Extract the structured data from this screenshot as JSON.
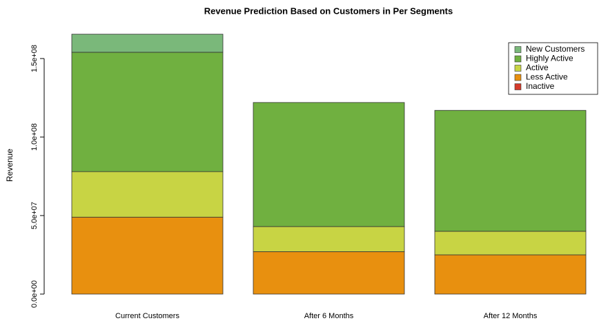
{
  "chart_data": {
    "type": "bar",
    "stacked": true,
    "title": "Revenue Prediction Based on Customers in Per Segments",
    "y_label": "Revenue",
    "categories": [
      "Current Customers",
      "After 6 Months",
      "After 12 Months"
    ],
    "series": [
      {
        "name": "Inactive",
        "color": "#d43a2a",
        "values": [
          0,
          0,
          0
        ]
      },
      {
        "name": "Less Active",
        "color": "#e8900f",
        "values": [
          49000000,
          27000000,
          25000000
        ]
      },
      {
        "name": "Active",
        "color": "#c8d444",
        "values": [
          29000000,
          16000000,
          15000000
        ]
      },
      {
        "name": "Highly Active",
        "color": "#70b040",
        "values": [
          76000000,
          79000000,
          77000000
        ]
      },
      {
        "name": "New Customers",
        "color": "#7ab87a",
        "values": [
          11500000,
          0,
          0
        ]
      }
    ],
    "ylim": [
      0,
      170000000
    ],
    "yticks": [
      {
        "value": 0,
        "label": "0.0e+00"
      },
      {
        "value": 50000000,
        "label": "5.0e+07"
      },
      {
        "value": 100000000,
        "label": "1.0e+08"
      },
      {
        "value": 150000000,
        "label": "1.5e+08"
      }
    ],
    "legend_position": "top-right",
    "grid": false
  }
}
